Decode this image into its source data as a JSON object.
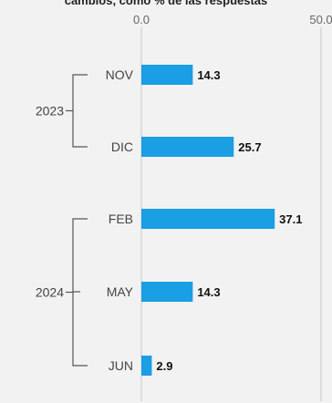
{
  "chart_data": {
    "type": "bar",
    "orientation": "horizontal",
    "title": "cambios, como % de las respuestas",
    "categories": [
      "NOV",
      "DIC",
      "FEB",
      "MAY",
      "JUN"
    ],
    "values": [
      14.3,
      25.7,
      37.1,
      14.3,
      2.9
    ],
    "value_labels": [
      "14.3",
      "25.7",
      "37.1",
      "14.3",
      "2.9"
    ],
    "groups": [
      {
        "label": "2023",
        "categories": [
          "NOV",
          "DIC"
        ]
      },
      {
        "label": "2024",
        "categories": [
          "FEB",
          "MAY",
          "JUN"
        ]
      }
    ],
    "xlim": [
      0,
      50
    ],
    "x_ticks": [
      "0.0",
      "50.0"
    ],
    "grid": true,
    "colors": {
      "bar": "#1a9ee4",
      "grid": "#c8c8c8",
      "bracket": "#555555",
      "background": "#f2f2f2"
    }
  }
}
